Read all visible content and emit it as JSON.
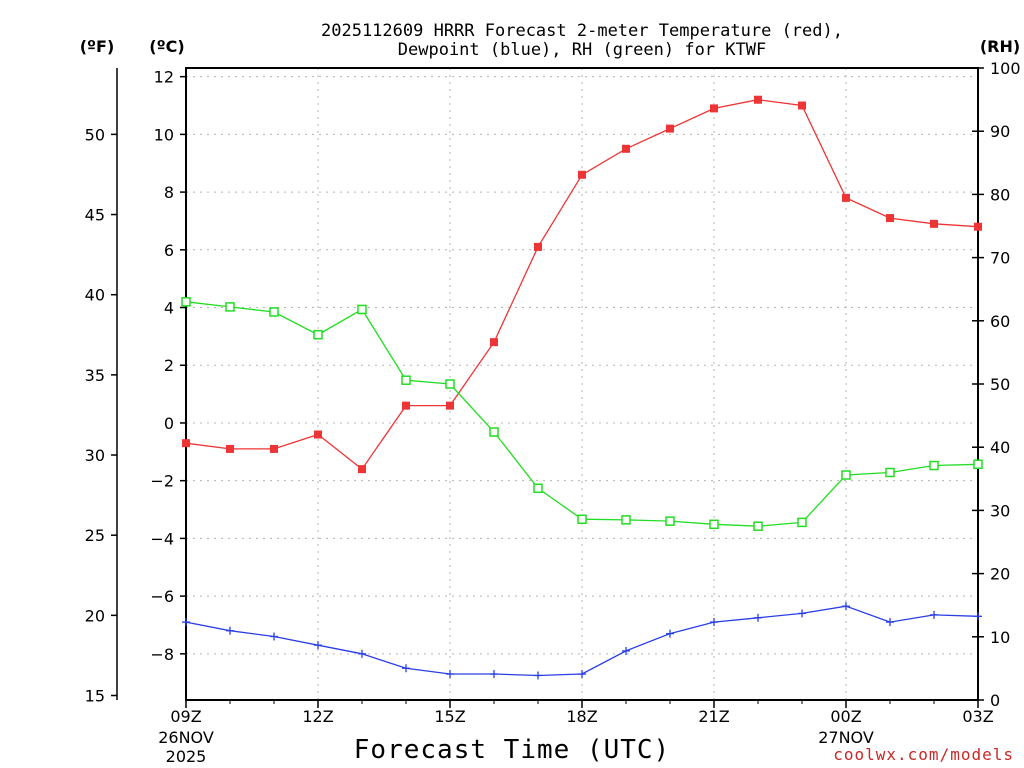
{
  "title": {
    "line1": "2025112609 HRRR Forecast 2-meter Temperature (red),",
    "line2": "Dewpoint (blue), RH (green) for KTWF"
  },
  "units": {
    "fahrenheit": "(ºF)",
    "celsius": "(ºC)",
    "rh": "(RH)"
  },
  "x_axis": {
    "label": "Forecast Time (UTC)",
    "ticks": [
      {
        "hour": 0,
        "label": "09Z",
        "sub": [
          "26NOV",
          "2025"
        ]
      },
      {
        "hour": 3,
        "label": "12Z",
        "sub": []
      },
      {
        "hour": 6,
        "label": "15Z",
        "sub": []
      },
      {
        "hour": 9,
        "label": "18Z",
        "sub": []
      },
      {
        "hour": 12,
        "label": "21Z",
        "sub": []
      },
      {
        "hour": 15,
        "label": "00Z",
        "sub": [
          "27NOV"
        ]
      },
      {
        "hour": 18,
        "label": "03Z",
        "sub": []
      }
    ]
  },
  "credit": "coolwx.com/models",
  "colors": {
    "temperature": "#ee3434",
    "dewpoint": "#2a3ee6",
    "rh": "#22dd22",
    "grid": "#b4b4b4"
  },
  "chart_data": {
    "type": "line",
    "title": "2025112609 HRRR Forecast 2-meter Temperature (red), Dewpoint (blue), RH (green) for KTWF",
    "xlabel": "Forecast Time (UTC)",
    "x": [
      0,
      1,
      2,
      3,
      4,
      5,
      6,
      7,
      8,
      9,
      10,
      11,
      12,
      13,
      14,
      15,
      16,
      17,
      18
    ],
    "xlim": [
      0,
      18
    ],
    "celsius_axis": {
      "label": "(ºC)",
      "ylim": [
        -9.6,
        12.3
      ],
      "ticks": [
        12,
        10,
        8,
        6,
        4,
        2,
        0,
        -2,
        -4,
        -6,
        -8
      ]
    },
    "fahrenheit_axis": {
      "label": "(ºF)",
      "ticks": [
        50,
        45,
        40,
        35,
        30,
        25,
        20,
        15
      ]
    },
    "rh_axis": {
      "label": "(RH)",
      "ylim": [
        0,
        100
      ],
      "ticks": [
        100,
        90,
        80,
        70,
        60,
        50,
        40,
        30,
        20,
        10,
        0
      ]
    },
    "series": [
      {
        "name": "Temperature",
        "axis": "celsius",
        "marker": "filled-square",
        "values": [
          -0.7,
          -0.9,
          -0.9,
          -0.4,
          -1.6,
          0.6,
          0.6,
          2.8,
          6.1,
          8.6,
          9.5,
          10.2,
          10.9,
          11.2,
          11.0,
          7.8,
          7.1,
          6.9,
          6.8
        ]
      },
      {
        "name": "Dewpoint",
        "axis": "celsius",
        "marker": "plus",
        "values": [
          -6.9,
          -7.2,
          -7.4,
          -7.7,
          -8.0,
          -8.5,
          -8.7,
          -8.7,
          -8.75,
          -8.7,
          -7.9,
          -7.3,
          -6.9,
          -6.75,
          -6.6,
          -6.35,
          -6.9,
          -6.65,
          -6.7
        ]
      },
      {
        "name": "RH",
        "axis": "rh",
        "marker": "open-square",
        "values": [
          63,
          62.2,
          61.4,
          57.8,
          61.8,
          50.6,
          50.0,
          42.4,
          33.5,
          28.6,
          28.5,
          28.3,
          27.8,
          27.5,
          28.1,
          35.6,
          36.0,
          37.1,
          37.3
        ]
      }
    ]
  }
}
